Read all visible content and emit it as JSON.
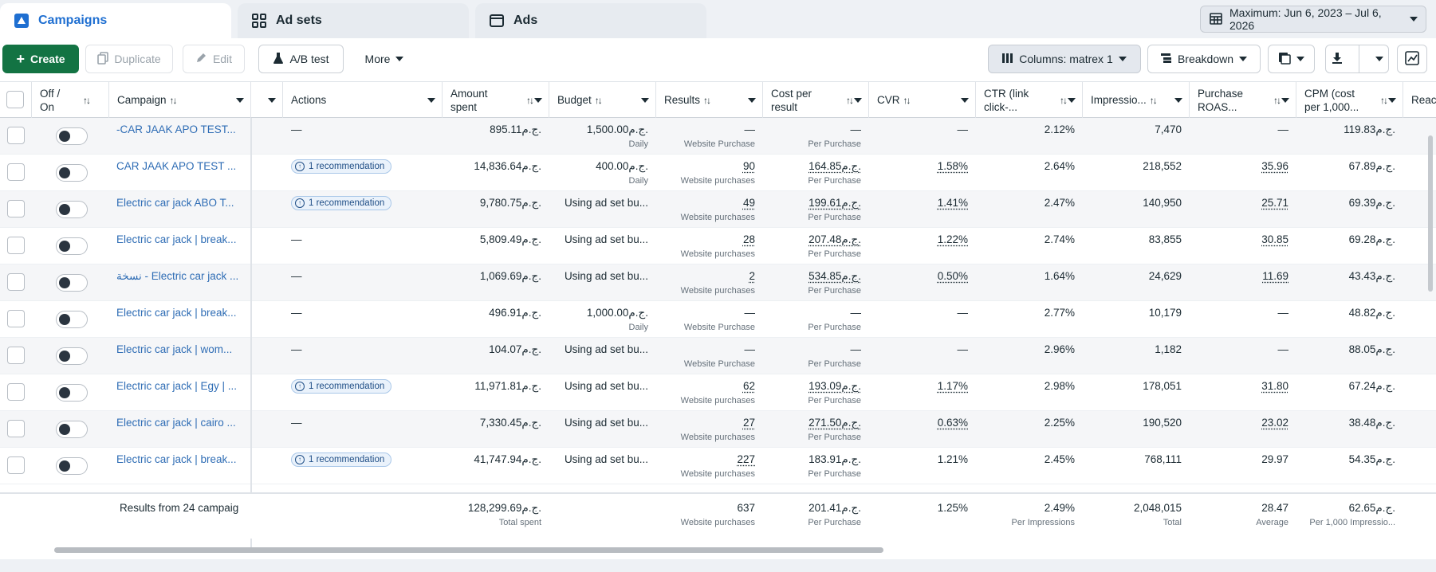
{
  "tabs": [
    {
      "label": "Campaigns",
      "icon": "campaign-flag-icon",
      "active": true
    },
    {
      "label": "Ad sets",
      "icon": "grid-icon",
      "active": false
    },
    {
      "label": "Ads",
      "icon": "ad-window-icon",
      "active": false
    }
  ],
  "date_range": "Maximum: Jun 6, 2023 – Jul 6, 2026",
  "toolbar": {
    "create": "Create",
    "duplicate": "Duplicate",
    "edit": "Edit",
    "ab_test": "A/B test",
    "more": "More",
    "columns": "Columns: matrex 1",
    "breakdown": "Breakdown"
  },
  "columns": {
    "off_on": "Off / On",
    "campaign": "Campaign",
    "actions": "Actions",
    "amount_spent": "Amount spent",
    "budget": "Budget",
    "results": "Results",
    "cost_per_result": "Cost per result",
    "cvr": "CVR",
    "ctr": "CTR (link click-...",
    "impressions": "Impressio...",
    "purchase_roas": "Purchase ROAS...",
    "cpm": "CPM (cost per 1,000...",
    "reach": "Reac"
  },
  "sort_glyph": "↑↓",
  "rows": [
    {
      "campaign": "-CAR JAAK APO TEST...",
      "action": "—",
      "reco": false,
      "spent": "895.11ج.م.",
      "budget": "1,500.00ج.م.",
      "budget_sub": "Daily",
      "results": "—",
      "results_sub": "Website Purchase",
      "cpr": "—",
      "cpr_sub": "Per Purchase",
      "cvr": "—",
      "ctr": "2.12%",
      "impr": "7,470",
      "roas": "—",
      "cpm": "119.83ج.م."
    },
    {
      "campaign": "CAR JAAK APO TEST ...",
      "action": "",
      "reco": true,
      "spent": "14,836.64ج.م.",
      "budget": "400.00ج.م.",
      "budget_sub": "Daily",
      "results": "90",
      "results_sub": "Website purchases",
      "cpr": "164.85ج.م.",
      "cpr_sub": "Per Purchase",
      "cvr": "1.58%",
      "ctr": "2.64%",
      "impr": "218,552",
      "roas": "35.96",
      "cpm": "67.89ج.م."
    },
    {
      "campaign": "Electric car jack ABO T...",
      "action": "",
      "reco": true,
      "spent": "9,780.75ج.م.",
      "budget": "Using ad set bu...",
      "budget_sub": "",
      "results": "49",
      "results_sub": "Website purchases",
      "cpr": "199.61ج.م.",
      "cpr_sub": "Per Purchase",
      "cvr": "1.41%",
      "ctr": "2.47%",
      "impr": "140,950",
      "roas": "25.71",
      "cpm": "69.39ج.م."
    },
    {
      "campaign": "Electric car jack | break...",
      "action": "—",
      "reco": false,
      "spent": "5,809.49ج.م.",
      "budget": "Using ad set bu...",
      "budget_sub": "",
      "results": "28",
      "results_sub": "Website purchases",
      "cpr": "207.48ج.م.",
      "cpr_sub": "Per Purchase",
      "cvr": "1.22%",
      "ctr": "2.74%",
      "impr": "83,855",
      "roas": "30.85",
      "cpm": "69.28ج.م."
    },
    {
      "campaign": "نسخة - Electric car jack ...",
      "action": "—",
      "reco": false,
      "spent": "1,069.69ج.م.",
      "budget": "Using ad set bu...",
      "budget_sub": "",
      "results": "2",
      "results_sub": "Website purchases",
      "cpr": "534.85ج.م.",
      "cpr_sub": "Per Purchase",
      "cvr": "0.50%",
      "ctr": "1.64%",
      "impr": "24,629",
      "roas": "11.69",
      "cpm": "43.43ج.م."
    },
    {
      "campaign": "Electric car jack | break...",
      "action": "—",
      "reco": false,
      "spent": "496.91ج.م.",
      "budget": "1,000.00ج.م.",
      "budget_sub": "Daily",
      "results": "—",
      "results_sub": "Website Purchase",
      "cpr": "—",
      "cpr_sub": "Per Purchase",
      "cvr": "—",
      "ctr": "2.77%",
      "impr": "10,179",
      "roas": "—",
      "cpm": "48.82ج.م."
    },
    {
      "campaign": "Electric car jack | wom...",
      "action": "—",
      "reco": false,
      "spent": "104.07ج.م.",
      "budget": "Using ad set bu...",
      "budget_sub": "",
      "results": "—",
      "results_sub": "Website Purchase",
      "cpr": "—",
      "cpr_sub": "Per Purchase",
      "cvr": "—",
      "ctr": "2.96%",
      "impr": "1,182",
      "roas": "—",
      "cpm": "88.05ج.م."
    },
    {
      "campaign": "Electric car jack | Egy | ...",
      "action": "",
      "reco": true,
      "spent": "11,971.81ج.م.",
      "budget": "Using ad set bu...",
      "budget_sub": "",
      "results": "62",
      "results_sub": "Website purchases",
      "cpr": "193.09ج.م.",
      "cpr_sub": "Per Purchase",
      "cvr": "1.17%",
      "ctr": "2.98%",
      "impr": "178,051",
      "roas": "31.80",
      "cpm": "67.24ج.م."
    },
    {
      "campaign": "Electric car jack | cairo ...",
      "action": "—",
      "reco": false,
      "spent": "7,330.45ج.م.",
      "budget": "Using ad set bu...",
      "budget_sub": "",
      "results": "27",
      "results_sub": "Website purchases",
      "cpr": "271.50ج.م.",
      "cpr_sub": "Per Purchase",
      "cvr": "0.63%",
      "ctr": "2.25%",
      "impr": "190,520",
      "roas": "23.02",
      "cpm": "38.48ج.م."
    },
    {
      "campaign": "Electric car jack | break...",
      "action": "",
      "reco": true,
      "spent": "41,747.94ج.م.",
      "budget": "Using ad set bu...",
      "budget_sub": "",
      "results": "227",
      "results_sub": "Website purchases",
      "cpr": "183.91ج.م.",
      "cpr_sub": "Per Purchase",
      "cvr": "1.21%",
      "ctr": "2.45%",
      "impr": "768,111",
      "roas": "29.97",
      "cpm": "54.35ج.م."
    }
  ],
  "recommendation_label": "1 recommendation",
  "totals": {
    "label": "Results from 24 campaig",
    "spent": "128,299.69ج.م.",
    "spent_sub": "Total spent",
    "results": "637",
    "results_sub": "Website purchases",
    "cpr": "201.41ج.م.",
    "cpr_sub": "Per Purchase",
    "cvr": "1.25%",
    "ctr": "2.49%",
    "ctr_sub": "Per Impressions",
    "impr": "2,048,015",
    "impr_sub": "Total",
    "roas": "28.47",
    "roas_sub": "Average",
    "cpm": "62.65ج.م.",
    "cpm_sub": "Per 1,000 Impressio..."
  },
  "colors": {
    "primary_green": "#137343",
    "link_blue": "#2f6db5",
    "tab_active": "#1f6fd1"
  }
}
